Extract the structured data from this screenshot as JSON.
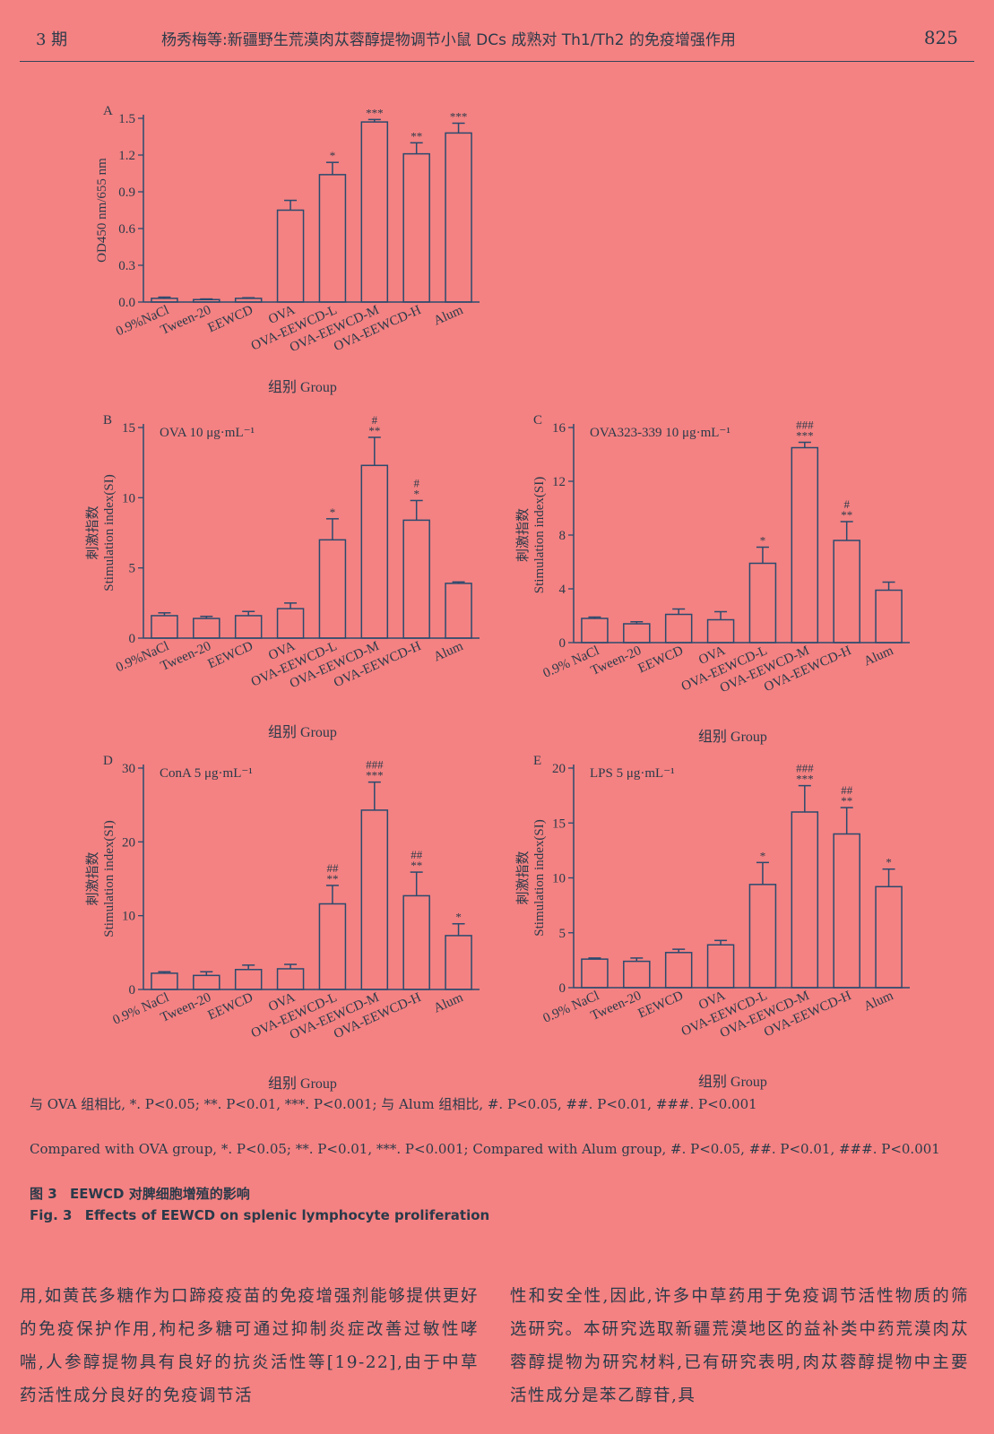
{
  "header": {
    "issue": "3 期",
    "title": "杨秀梅等:新疆野生荒漠肉苁蓉醇提物调节小鼠 DCs 成熟对 Th1/Th2 的免疫增强作用",
    "page": "825"
  },
  "chart_data": [
    {
      "panel": "A",
      "type": "bar",
      "annotation": "",
      "categories": [
        "0.9%NaCl",
        "Tween-20",
        "EEWCD",
        "OVA",
        "OVA-EEWCD-L",
        "OVA-EEWCD-M",
        "OVA-EEWCD-H",
        "Alum"
      ],
      "values": [
        0.03,
        0.02,
        0.03,
        0.75,
        1.04,
        1.47,
        1.21,
        1.38
      ],
      "errors": [
        0.01,
        0.005,
        0.005,
        0.08,
        0.1,
        0.02,
        0.09,
        0.08
      ],
      "sig1": [
        "",
        "",
        "",
        "",
        "*",
        "***",
        "**",
        "***"
      ],
      "sig2": [
        "",
        "",
        "",
        "",
        "",
        "",
        "",
        ""
      ],
      "ylim": [
        0,
        1.5
      ],
      "yticks": [
        "0.0",
        "0.3",
        "0.6",
        "0.9",
        "1.2",
        "1.5"
      ],
      "ylabel_cn": "",
      "ylabel_en": "OD450 nm/655 nm",
      "xlabel": "组别 Group"
    },
    {
      "panel": "B",
      "type": "bar",
      "annotation": "OVA 10 μg·mL⁻¹",
      "categories": [
        "0.9%NaCl",
        "Tween-20",
        "EEWCD",
        "OVA",
        "OVA-EEWCD-L",
        "OVA-EEWCD-M",
        "OVA-EEWCD-H",
        "Alum"
      ],
      "values": [
        1.6,
        1.4,
        1.6,
        2.1,
        7.0,
        12.3,
        8.4,
        3.9
      ],
      "errors": [
        0.2,
        0.15,
        0.3,
        0.4,
        1.5,
        2.0,
        1.4,
        0.1
      ],
      "sig1": [
        "",
        "",
        "",
        "",
        "*",
        "**",
        "*",
        ""
      ],
      "sig2": [
        "",
        "",
        "",
        "",
        "",
        "#",
        "#",
        ""
      ],
      "ylim": [
        0,
        15
      ],
      "yticks": [
        "0",
        "5",
        "10",
        "15"
      ],
      "ylabel_cn": "刺激指数",
      "ylabel_en": "Stimulation index(SI)",
      "xlabel": "组别 Group"
    },
    {
      "panel": "C",
      "type": "bar",
      "annotation": "OVA323-339 10 μg·mL⁻¹",
      "categories": [
        "0.9% NaCl",
        "Tween-20",
        "EEWCD",
        "OVA",
        "OVA-EEWCD-L",
        "OVA-EEWCD-M",
        "OVA-EEWCD-H",
        "Alum"
      ],
      "values": [
        1.8,
        1.4,
        2.1,
        1.7,
        5.9,
        14.5,
        7.6,
        3.9
      ],
      "errors": [
        0.1,
        0.15,
        0.4,
        0.6,
        1.2,
        0.4,
        1.4,
        0.6
      ],
      "sig1": [
        "",
        "",
        "",
        "",
        "*",
        "***",
        "**",
        ""
      ],
      "sig2": [
        "",
        "",
        "",
        "",
        "",
        "###",
        "#",
        ""
      ],
      "ylim": [
        0,
        16
      ],
      "yticks": [
        "0",
        "4",
        "8",
        "12",
        "16"
      ],
      "ylabel_cn": "刺激指数",
      "ylabel_en": "Stimulation index(SI)",
      "xlabel": "组别 Group"
    },
    {
      "panel": "D",
      "type": "bar",
      "annotation": "ConA 5 μg·mL⁻¹",
      "categories": [
        "0.9% NaCl",
        "Tween-20",
        "EEWCD",
        "OVA",
        "OVA-EEWCD-L",
        "OVA-EEWCD-M",
        "OVA-EEWCD-H",
        "Alum"
      ],
      "values": [
        2.2,
        1.9,
        2.7,
        2.8,
        11.6,
        24.3,
        12.7,
        7.3
      ],
      "errors": [
        0.2,
        0.5,
        0.6,
        0.6,
        2.5,
        3.8,
        3.2,
        1.6
      ],
      "sig1": [
        "",
        "",
        "",
        "",
        "**",
        "***",
        "**",
        "*"
      ],
      "sig2": [
        "",
        "",
        "",
        "",
        "##",
        "###",
        "##",
        ""
      ],
      "ylim": [
        0,
        30
      ],
      "yticks": [
        "0",
        "10",
        "20",
        "30"
      ],
      "ylabel_cn": "刺激指数",
      "ylabel_en": "Stimulation index(SI)",
      "xlabel": "组别 Group"
    },
    {
      "panel": "E",
      "type": "bar",
      "annotation": "LPS 5 μg·mL⁻¹",
      "categories": [
        "0.9% NaCl",
        "Tween-20",
        "EEWCD",
        "OVA",
        "OVA-EEWCD-L",
        "OVA-EEWCD-M",
        "OVA-EEWCD-H",
        "Alum"
      ],
      "values": [
        2.6,
        2.4,
        3.2,
        3.9,
        9.4,
        16.0,
        14.0,
        9.2
      ],
      "errors": [
        0.1,
        0.3,
        0.3,
        0.4,
        2.0,
        2.4,
        2.4,
        1.6
      ],
      "sig1": [
        "",
        "",
        "",
        "",
        "*",
        "***",
        "**",
        "*"
      ],
      "sig2": [
        "",
        "",
        "",
        "",
        "",
        "###",
        "##",
        ""
      ],
      "ylim": [
        0,
        20
      ],
      "yticks": [
        "0",
        "5",
        "10",
        "15",
        "20"
      ],
      "ylabel_cn": "刺激指数",
      "ylabel_en": "Stimulation index(SI)",
      "xlabel": "组别 Group"
    }
  ],
  "caption": {
    "note_cn": "与 OVA 组相比, *. P<0.05; **. P<0.01, ***. P<0.001; 与 Alum 组相比, #. P<0.05, ##. P<0.01, ###. P<0.001",
    "note_en": "Compared with OVA group, *. P<0.05; **. P<0.01, ***. P<0.001; Compared with Alum group, #. P<0.05, ##. P<0.01, ###. P<0.001",
    "fig_cn_label": "图 3",
    "fig_cn_title": "EEWCD 对脾细胞增殖的影响",
    "fig_en_label": "Fig. 3",
    "fig_en_title": "Effects of EEWCD on splenic lymphocyte proliferation"
  },
  "body": {
    "left": "用,如黄芪多糖作为口蹄疫疫苗的免疫增强剂能够提供更好的免疫保护作用,枸杞多糖可通过抑制炎症改善过敏性哮喘,人参醇提物具有良好的抗炎活性等[19-22],由于中草药活性成分良好的免疫调节活",
    "right": "性和安全性,因此,许多中草药用于免疫调节活性物质的筛选研究。本研究选取新疆荒漠地区的益补类中药荒漠肉苁蓉醇提物为研究材料,已有研究表明,肉苁蓉醇提物中主要活性成分是苯乙醇苷,具"
  }
}
